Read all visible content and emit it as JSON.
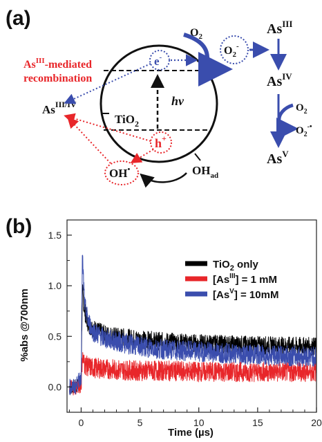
{
  "panel_a": {
    "label": "(a)",
    "electron": "e",
    "electron_sup": "-",
    "hv": "hv",
    "tio2": "TiO",
    "tio2_sub": "2",
    "hole": "h",
    "hole_sup": "+",
    "as_iii_iv": "As",
    "as_iii_iv_sup": "III/IV",
    "oh_radical": "OH",
    "oh_radical_sup": "•",
    "oh_ad": "OH",
    "oh_ad_sub": "ad",
    "o2": "O",
    "o2_sub": "2",
    "superoxide": "O",
    "superoxide_sub": "2",
    "superoxide_sup": "-",
    "recomb_line1_as": "As",
    "recomb_line1_sup": "III",
    "recomb_line1_rest": "-mediated",
    "recomb_line2": "recombination",
    "chain_as_iii": "As",
    "chain_as_iii_sup": "III",
    "chain_as_iv": "As",
    "chain_as_iv_sup": "IV",
    "chain_o2": "O",
    "chain_o2_sub": "2",
    "chain_superoxide": "O",
    "chain_superoxide_sub": "2",
    "chain_superoxide_sup": "-•",
    "chain_as_v": "As",
    "chain_as_v_sup": "V",
    "colors": {
      "red": "#e8262a",
      "blue": "#3a4dad",
      "black": "#111111"
    }
  },
  "panel_b": {
    "label": "(b)",
    "xlabel": "Time (µs)",
    "ylabel": "%abs @700nm",
    "legend": [
      {
        "text": "TiO",
        "sub": "2",
        "rest": " only"
      },
      {
        "text": "[As",
        "sup": "III",
        "rest": "] = 1 mM"
      },
      {
        "text": "[As",
        "sup": "V",
        "rest": "] = 10mM"
      }
    ]
  },
  "chart_data": {
    "type": "line",
    "xlabel": "Time (µs)",
    "ylabel": "%abs @700nm",
    "xlim": [
      -1.2,
      20
    ],
    "ylim": [
      -0.25,
      1.65
    ],
    "xticks": [
      0,
      5,
      10,
      15,
      20
    ],
    "yticks": [
      0.0,
      0.5,
      1.0,
      1.5
    ],
    "grid": false,
    "legend_position": "top-right",
    "series": [
      {
        "name": "TiO2 only",
        "color": "#000000",
        "x": [
          -1,
          -0.5,
          0,
          0.1,
          0.3,
          0.6,
          1,
          2,
          3,
          5,
          7,
          10,
          13,
          16,
          20
        ],
        "values": [
          0.0,
          0.0,
          0.05,
          0.95,
          0.75,
          0.62,
          0.58,
          0.52,
          0.5,
          0.47,
          0.45,
          0.43,
          0.42,
          0.41,
          0.4
        ]
      },
      {
        "name": "[AsIII] = 1 mM",
        "color": "#e8262a",
        "x": [
          -1,
          -0.5,
          0,
          0.1,
          0.3,
          0.6,
          1,
          2,
          3,
          5,
          7,
          10,
          13,
          16,
          20
        ],
        "values": [
          0.0,
          0.0,
          0.02,
          0.3,
          0.22,
          0.2,
          0.19,
          0.18,
          0.17,
          0.16,
          0.16,
          0.15,
          0.15,
          0.15,
          0.15
        ]
      },
      {
        "name": "[AsV] = 10mM",
        "color": "#3a4dad",
        "x": [
          -1,
          -0.5,
          0,
          0.1,
          0.3,
          0.6,
          1,
          2,
          3,
          5,
          7,
          10,
          13,
          16,
          20
        ],
        "values": [
          0.0,
          0.0,
          0.1,
          1.3,
          0.8,
          0.65,
          0.55,
          0.48,
          0.45,
          0.4,
          0.37,
          0.35,
          0.33,
          0.31,
          0.3
        ]
      }
    ]
  }
}
